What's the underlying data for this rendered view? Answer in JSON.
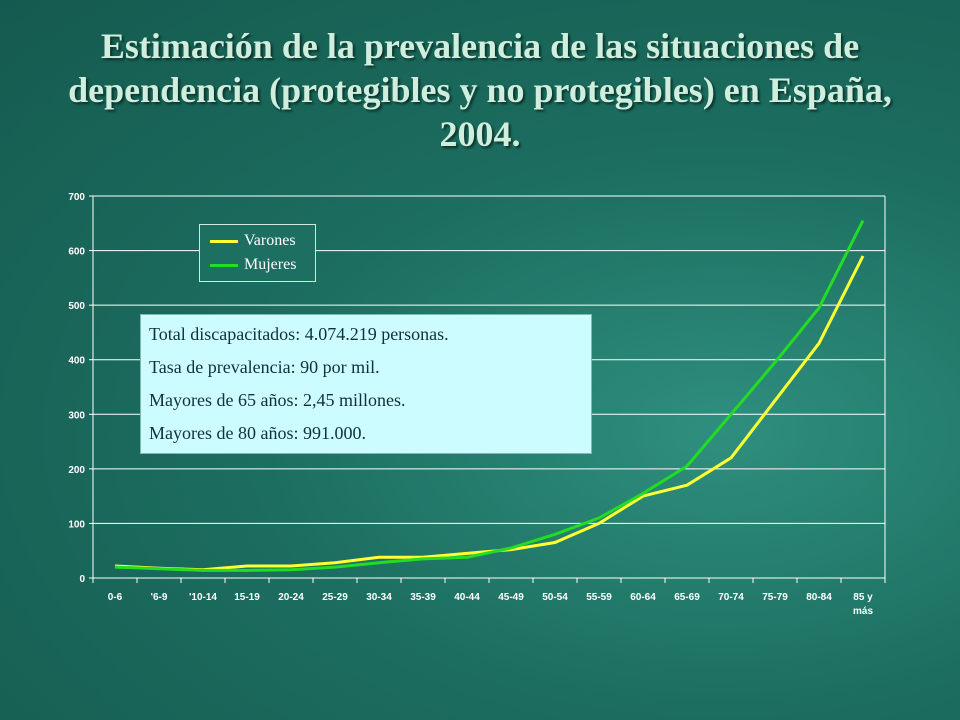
{
  "title": "Estimación de la prevalencia de las situaciones de dependencia (protegibles y no protegibles) en España, 2004.",
  "info_box": {
    "lines": [
      "Total discapacitados: 4.074.219 personas.",
      "Tasa de prevalencia:  90 por mil.",
      "Mayores de 65 años: 2,45 millones.",
      "Mayores de 80 años: 991.000."
    ]
  },
  "colors": {
    "varones": "#ffff33",
    "mujeres": "#22dd22",
    "grid": "#ffffff",
    "axis": "#ffffff"
  },
  "chart_data": {
    "type": "line",
    "title": "",
    "xlabel": "",
    "ylabel": "",
    "ylim": [
      0,
      700
    ],
    "yticks": [
      0,
      100,
      200,
      300,
      400,
      500,
      600,
      700
    ],
    "grid": true,
    "legend": "top-left",
    "categories": [
      "0-6",
      "6-9",
      "10-14",
      "15-19",
      "20-24",
      "25-29",
      "30-34",
      "35-39",
      "40-44",
      "45-49",
      "50-54",
      "55-59",
      "60-64",
      "65-69",
      "70-74",
      "75-79",
      "80-84",
      "85 y más"
    ],
    "tick_labels": [
      [
        "0-6"
      ],
      [
        "'6-9"
      ],
      [
        "'10-14"
      ],
      [
        "15-19"
      ],
      [
        "20-24"
      ],
      [
        "25-29"
      ],
      [
        "30-34"
      ],
      [
        "35-39"
      ],
      [
        "40-44"
      ],
      [
        "45-49"
      ],
      [
        "50-54"
      ],
      [
        "55-59"
      ],
      [
        "60-64"
      ],
      [
        "65-69"
      ],
      [
        "70-74"
      ],
      [
        "75-79"
      ],
      [
        "80-84"
      ],
      [
        "85 y",
        "más"
      ]
    ],
    "series": [
      {
        "name": "Varones",
        "values": [
          22,
          18,
          15,
          22,
          22,
          28,
          38,
          38,
          45,
          52,
          65,
          100,
          150,
          170,
          220,
          325,
          430,
          590
        ]
      },
      {
        "name": "Mujeres",
        "values": [
          20,
          17,
          14,
          14,
          15,
          20,
          28,
          35,
          38,
          55,
          80,
          110,
          155,
          205,
          300,
          395,
          495,
          655
        ]
      }
    ]
  }
}
